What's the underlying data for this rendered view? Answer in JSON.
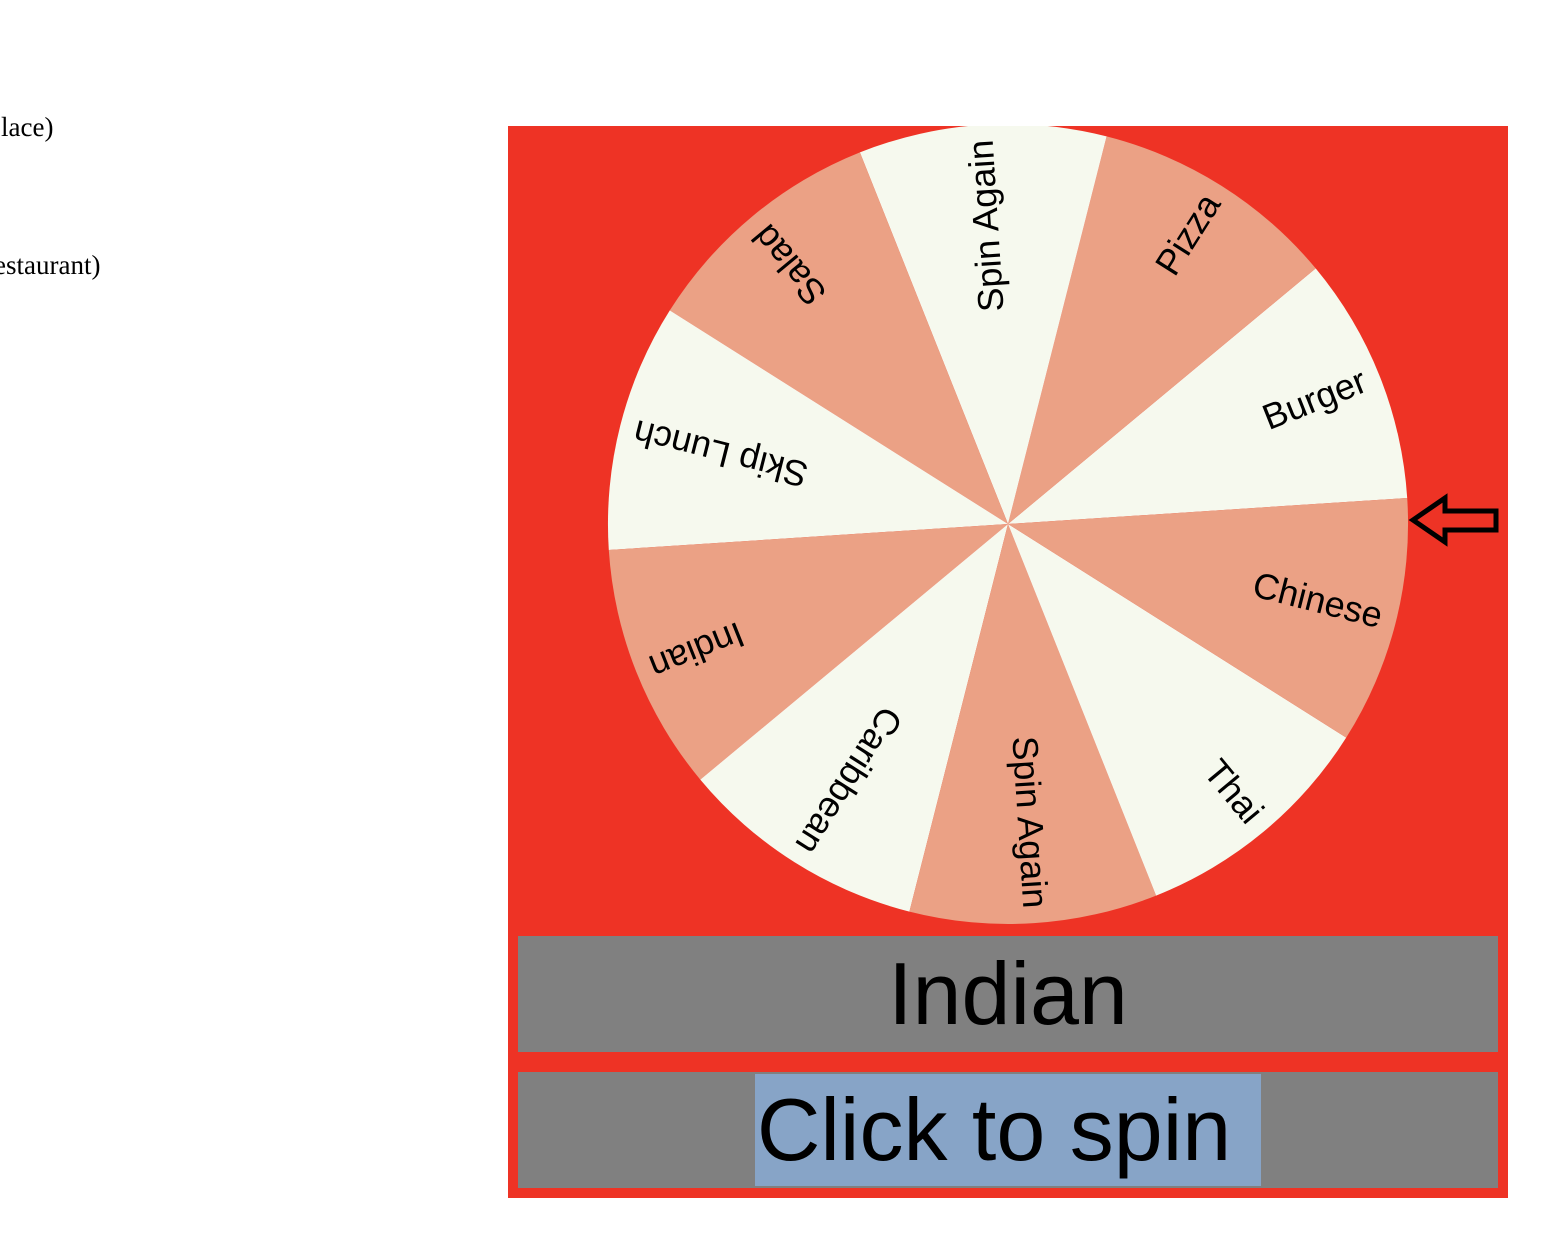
{
  "background_text": [
    "Place)",
    "estaurant)"
  ],
  "wheel": {
    "segments": [
      "Burger",
      "Pizza",
      "Spin Again",
      "Salad",
      "Skip Lunch",
      "Indian",
      "Caribbean",
      "Spin Again",
      "Thai",
      "Chinese"
    ],
    "colors": {
      "panel": "#ee3325",
      "slice_a": "#f6f9ee",
      "slice_b": "#eba185"
    },
    "pointer_icon": "arrow-left-outline-icon"
  },
  "result": {
    "text": "Indian"
  },
  "spin_button": {
    "label": "Click to spin"
  }
}
